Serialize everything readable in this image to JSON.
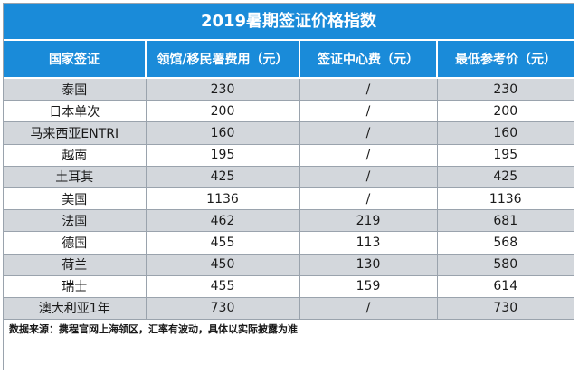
{
  "title": "2019暑期签证价格指数",
  "headers": [
    "国家签证",
    "领馆/移民署费用（元）",
    "签证中心费（元）",
    "最低参考价（元）"
  ],
  "rows": [
    {
      "country": "泰国",
      "consulate_fee": "230",
      "center_fee": "/",
      "min_price": "230"
    },
    {
      "country": "日本单次",
      "consulate_fee": "200",
      "center_fee": "/",
      "min_price": "200"
    },
    {
      "country": "马来西亚ENTRI",
      "consulate_fee": "160",
      "center_fee": "/",
      "min_price": "160"
    },
    {
      "country": "越南",
      "consulate_fee": "195",
      "center_fee": "/",
      "min_price": "195"
    },
    {
      "country": "土耳其",
      "consulate_fee": "425",
      "center_fee": "/",
      "min_price": "425"
    },
    {
      "country": "美国",
      "consulate_fee": "1136",
      "center_fee": "/",
      "min_price": "1136"
    },
    {
      "country": "法国",
      "consulate_fee": "462",
      "center_fee": "219",
      "min_price": "681"
    },
    {
      "country": "德国",
      "consulate_fee": "455",
      "center_fee": "113",
      "min_price": "568"
    },
    {
      "country": "荷兰",
      "consulate_fee": "450",
      "center_fee": "130",
      "min_price": "580"
    },
    {
      "country": "瑞士",
      "consulate_fee": "455",
      "center_fee": "159",
      "min_price": "614"
    },
    {
      "country": "澳大利亚1年",
      "consulate_fee": "730",
      "center_fee": "/",
      "min_price": "730"
    }
  ],
  "footer": "数据来源：携程官网上海领区，汇率有波动，具体以实际披露为准",
  "colors": {
    "header_bg": "#1a8bd9",
    "stripe": "#d3d7dc"
  }
}
